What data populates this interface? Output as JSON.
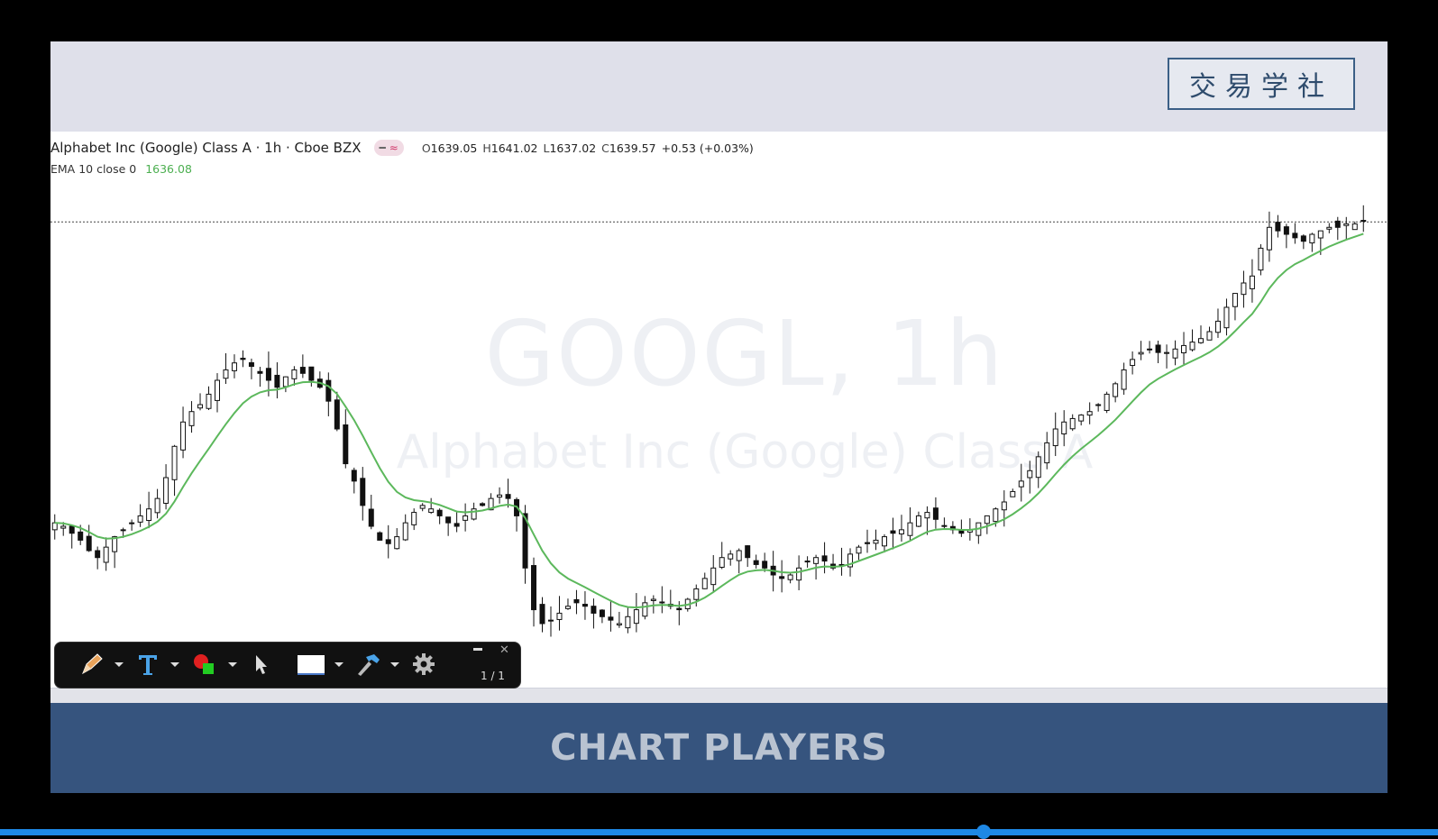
{
  "logo": {
    "text": "交易学社"
  },
  "legend": {
    "title": "Alphabet Inc (Google) Class A · 1h · Cboe BZX",
    "badge_a": "━",
    "badge_b": "≈",
    "open_label": "O",
    "open": "1639.05",
    "high_label": "H",
    "high": "1641.02",
    "low_label": "L",
    "low": "1637.02",
    "close_label": "C",
    "close": "1639.57",
    "change": "+0.53 (+0.03%)"
  },
  "ema": {
    "label": "EMA 10 close 0",
    "value": "1636.08"
  },
  "watermark": {
    "ticker": "GOOGL, 1h",
    "name": "Alphabet Inc (Google) Class A"
  },
  "footer": {
    "text": "CHART PLAYERS"
  },
  "toolbar": {
    "page": "1 / 1",
    "icons": [
      "pencil-icon",
      "text-tool-icon",
      "color-picker-icon",
      "pointer-icon",
      "whiteboard-icon",
      "hammer-icon",
      "gear-icon"
    ],
    "close_glyph": "✕"
  },
  "colors": {
    "ema_line": "#5cb85c",
    "footer_bg": "#36547e",
    "candle": "#111111",
    "progress": "#1e88e5"
  },
  "chart_data": {
    "type": "candlestick",
    "symbol": "GOOGL",
    "interval": "1h",
    "ylim": [
      1510,
      1650
    ],
    "price_line": 1639.57,
    "close_series": [
      1553,
      1552,
      1550,
      1548,
      1545,
      1543,
      1546,
      1549,
      1551,
      1553,
      1555,
      1557,
      1560,
      1566,
      1575,
      1582,
      1585,
      1587,
      1590,
      1594,
      1597,
      1599,
      1600,
      1598,
      1596,
      1594,
      1592,
      1595,
      1597,
      1596,
      1594,
      1592,
      1588,
      1580,
      1570,
      1565,
      1558,
      1552,
      1548,
      1547,
      1549,
      1553,
      1556,
      1558,
      1557,
      1555,
      1553,
      1552,
      1555,
      1557,
      1558,
      1560,
      1561,
      1560,
      1555,
      1540,
      1528,
      1524,
      1525,
      1527,
      1529,
      1530,
      1529,
      1527,
      1526,
      1525,
      1524,
      1526,
      1528,
      1530,
      1531,
      1530,
      1529,
      1528,
      1531,
      1534,
      1537,
      1540,
      1543,
      1544,
      1545,
      1543,
      1541,
      1540,
      1538,
      1537,
      1538,
      1540,
      1542,
      1543,
      1542,
      1540,
      1541,
      1544,
      1546,
      1547,
      1548,
      1549,
      1550,
      1551,
      1553,
      1555,
      1556,
      1554,
      1552,
      1551,
      1550,
      1551,
      1553,
      1555,
      1557,
      1559,
      1562,
      1565,
      1568,
      1572,
      1576,
      1580,
      1582,
      1583,
      1584,
      1585,
      1587,
      1590,
      1593,
      1597,
      1600,
      1602,
      1603,
      1602,
      1602,
      1603,
      1604,
      1605,
      1606,
      1608,
      1611,
      1615,
      1619,
      1622,
      1624,
      1632,
      1638,
      1637,
      1636,
      1635,
      1634,
      1636,
      1637,
      1638,
      1638,
      1639,
      1639,
      1640
    ]
  }
}
